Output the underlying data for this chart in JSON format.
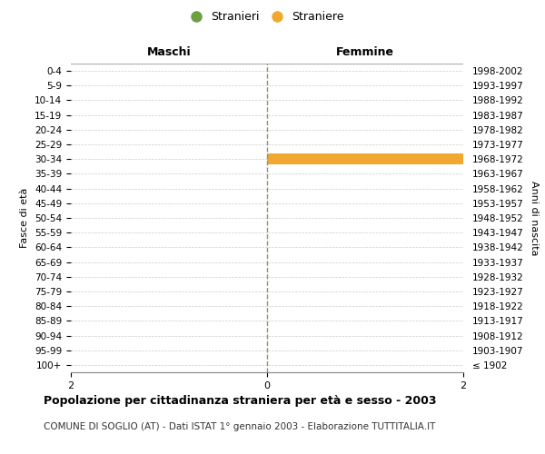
{
  "age_groups": [
    "100+",
    "95-99",
    "90-94",
    "85-89",
    "80-84",
    "75-79",
    "70-74",
    "65-69",
    "60-64",
    "55-59",
    "50-54",
    "45-49",
    "40-44",
    "35-39",
    "30-34",
    "25-29",
    "20-24",
    "15-19",
    "10-14",
    "5-9",
    "0-4"
  ],
  "birth_years": [
    "≤ 1902",
    "1903-1907",
    "1908-1912",
    "1913-1917",
    "1918-1922",
    "1923-1927",
    "1928-1932",
    "1933-1937",
    "1938-1942",
    "1943-1947",
    "1948-1952",
    "1953-1957",
    "1958-1962",
    "1963-1967",
    "1968-1972",
    "1973-1977",
    "1978-1982",
    "1983-1987",
    "1988-1992",
    "1993-1997",
    "1998-2002"
  ],
  "males": [
    0,
    0,
    0,
    0,
    0,
    0,
    0,
    0,
    0,
    0,
    0,
    0,
    0,
    0,
    0,
    0,
    0,
    0,
    0,
    0,
    0
  ],
  "females": [
    0,
    0,
    0,
    0,
    0,
    0,
    0,
    0,
    0,
    0,
    0,
    0,
    0,
    0,
    2,
    0,
    0,
    0,
    0,
    0,
    0
  ],
  "male_color": "#6d9e3f",
  "female_color": "#f0a830",
  "xlim": 2,
  "title": "Popolazione per cittadinanza straniera per età e sesso - 2003",
  "subtitle": "COMUNE DI SOGLIO (AT) - Dati ISTAT 1° gennaio 2003 - Elaborazione TUTTITALIA.IT",
  "ylabel_left": "Fasce di età",
  "ylabel_right": "Anni di nascita",
  "header_left": "Maschi",
  "header_right": "Femmine",
  "legend_males": "Stranieri",
  "legend_females": "Straniere",
  "background_color": "#ffffff",
  "grid_color": "#cccccc",
  "center_line_color": "#8a9a6a",
  "xtick_labels": [
    "2",
    "0",
    "2"
  ]
}
